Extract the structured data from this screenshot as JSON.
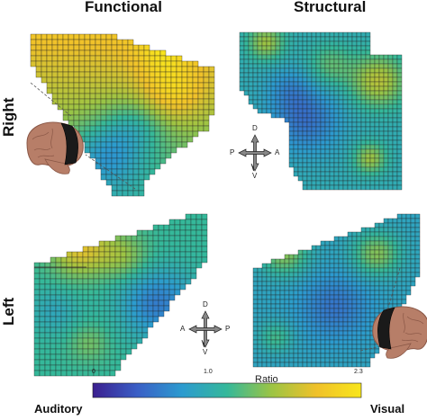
{
  "headers": {
    "col_left": "Functional",
    "col_right": "Structural",
    "row_top": "Right",
    "row_bottom": "Left"
  },
  "compass_top": {
    "up": "D",
    "down": "V",
    "left": "P",
    "right": "A"
  },
  "compass_bottom": {
    "up": "D",
    "down": "V",
    "left": "A",
    "right": "P"
  },
  "colorbar": {
    "title": "Ratio",
    "left_label": "Auditory",
    "right_label": "Visual",
    "ticks": [
      "0",
      "1.0",
      "2.3"
    ],
    "colormap": [
      "#3b1f8f",
      "#3a5fc6",
      "#2c9bcf",
      "#35b89a",
      "#9cc444",
      "#f0c12a",
      "#f8e61c"
    ]
  },
  "colors": {
    "brain": "#b77e68",
    "brain_dark": "#8a5746",
    "roi_band": "#1a1a1a",
    "grid_line": "#222222"
  }
}
